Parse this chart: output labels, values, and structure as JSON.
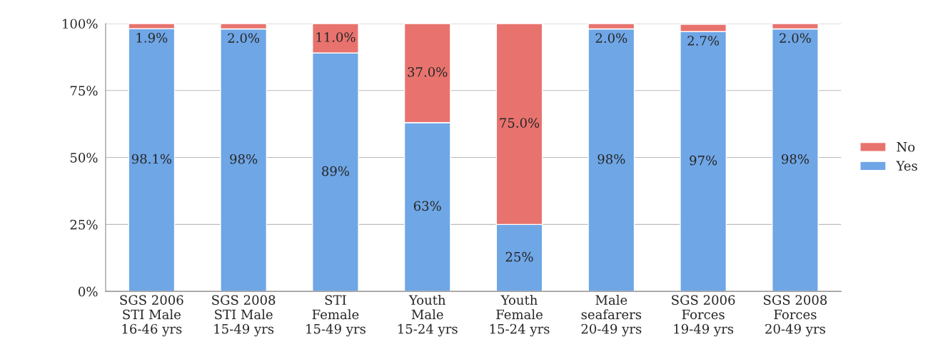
{
  "chart_data": {
    "type": "bar",
    "stacked": true,
    "categories": [
      "SGS 2006\nSTI Male\n16-46 yrs",
      "SGS 2008\nSTI Male\n15-49 yrs",
      "STI\nFemale\n15-49 yrs",
      "Youth\nMale\n15-24 yrs",
      "Youth\nFemale\n15-24 yrs",
      "Male\nseafarers\n20-49 yrs",
      "SGS 2006\nForces\n19-49 yrs",
      "SGS 2008\nForces\n20-49 yrs"
    ],
    "series": [
      {
        "name": "Yes",
        "color": "#6fa6e6",
        "values": [
          98.1,
          98,
          89,
          63,
          25,
          98,
          97,
          98
        ],
        "value_labels": [
          "98.1%",
          "98%",
          "89%",
          "63%",
          "25%",
          "98%",
          "97%",
          "98%"
        ]
      },
      {
        "name": "No",
        "color": "#e8736e",
        "values": [
          1.9,
          2.0,
          11.0,
          37.0,
          75.0,
          2.0,
          2.7,
          2.0
        ],
        "value_labels": [
          "1.9%",
          "2.0%",
          "11.0%",
          "37.0%",
          "75.0%",
          "2.0%",
          "2.7%",
          "2.0%"
        ]
      }
    ],
    "ylim": [
      0,
      100
    ],
    "yticks": [
      {
        "value": 0,
        "label": "0%"
      },
      {
        "value": 25,
        "label": "25%"
      },
      {
        "value": 50,
        "label": "50%"
      },
      {
        "value": 75,
        "label": "75%"
      },
      {
        "value": 100,
        "label": "100%"
      }
    ],
    "grid": "y",
    "legend": "right"
  }
}
